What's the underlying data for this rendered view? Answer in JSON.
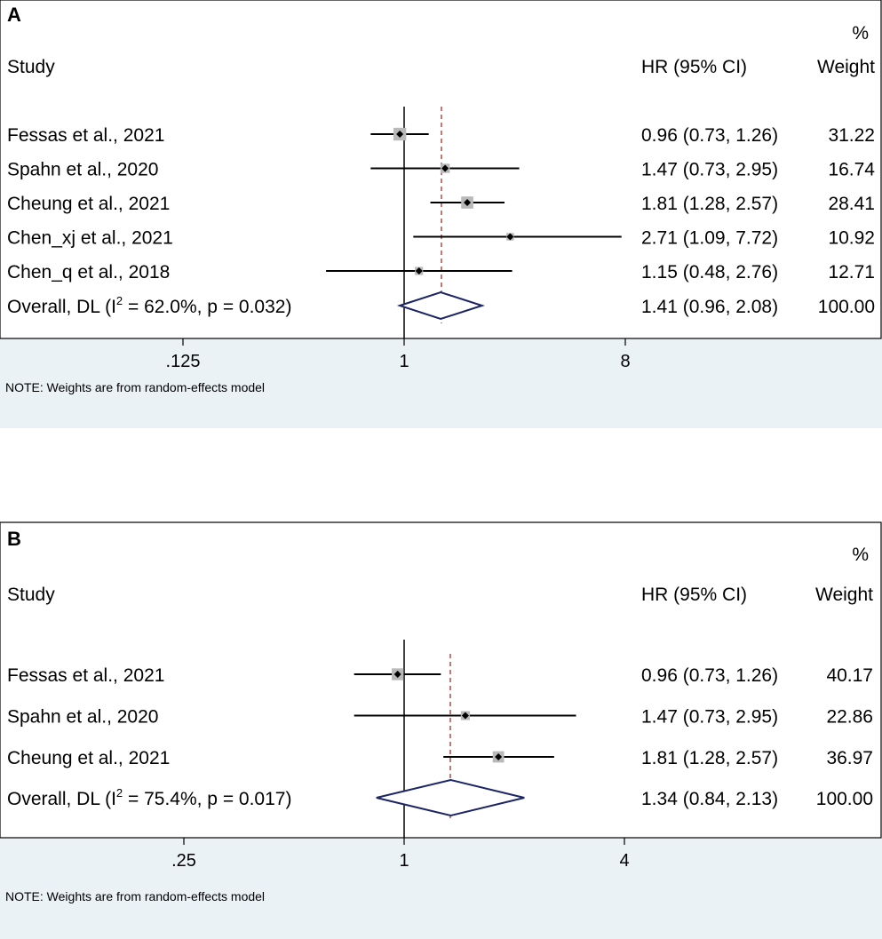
{
  "chart_data": [
    {
      "type": "forest",
      "panel_label": "A",
      "header": {
        "study": "Study",
        "hr": "HR (95% CI)",
        "weight_pct": "%",
        "weight": "Weight"
      },
      "x_scale": "log",
      "xlim": [
        0.0625,
        16
      ],
      "xticks": [
        0.125,
        1,
        8
      ],
      "xtick_labels": [
        ".125",
        "1",
        "8"
      ],
      "reference_line": 1,
      "pooled_estimate": 1.41,
      "studies": [
        {
          "label": "Fessas et al., 2021",
          "hr": 0.96,
          "lo": 0.73,
          "hi": 1.26,
          "hr_text": "0.96 (0.73, 1.26)",
          "weight": 31.22,
          "weight_text": "31.22"
        },
        {
          "label": "Spahn et al., 2020",
          "hr": 1.47,
          "lo": 0.73,
          "hi": 2.95,
          "hr_text": "1.47 (0.73, 2.95)",
          "weight": 16.74,
          "weight_text": "16.74"
        },
        {
          "label": "Cheung et al., 2021",
          "hr": 1.81,
          "lo": 1.28,
          "hi": 2.57,
          "hr_text": "1.81 (1.28, 2.57)",
          "weight": 28.41,
          "weight_text": "28.41"
        },
        {
          "label": "Chen_xj et al., 2021",
          "hr": 2.71,
          "lo": 1.09,
          "hi": 7.72,
          "hr_text": "2.71 (1.09, 7.72)",
          "weight": 10.92,
          "weight_text": "10.92"
        },
        {
          "label": "Chen_q et al., 2018",
          "hr": 1.15,
          "lo": 0.48,
          "hi": 2.76,
          "hr_text": "1.15 (0.48, 2.76)",
          "weight": 12.71,
          "weight_text": "12.71"
        }
      ],
      "overall": {
        "label_pre": "Overall, DL (I",
        "label_sup": "2",
        "label_post": " = 62.0%, p = 0.032)",
        "hr": 1.41,
        "lo": 0.96,
        "hi": 2.08,
        "hr_text": "1.41 (0.96, 2.08)",
        "weight_text": "100.00"
      },
      "note": "NOTE: Weights are from random-effects model"
    },
    {
      "type": "forest",
      "panel_label": "B",
      "header": {
        "study": "Study",
        "hr": "HR (95% CI)",
        "weight_pct": "%",
        "weight": "Weight"
      },
      "x_scale": "log",
      "xlim": [
        0.125,
        8
      ],
      "xticks": [
        0.25,
        1,
        4
      ],
      "xtick_labels": [
        ".25",
        "1",
        "4"
      ],
      "reference_line": 1,
      "pooled_estimate": 1.34,
      "studies": [
        {
          "label": "Fessas et al., 2021",
          "hr": 0.96,
          "lo": 0.73,
          "hi": 1.26,
          "hr_text": "0.96 (0.73, 1.26)",
          "weight": 40.17,
          "weight_text": "40.17"
        },
        {
          "label": "Spahn et al., 2020",
          "hr": 1.47,
          "lo": 0.73,
          "hi": 2.95,
          "hr_text": "1.47 (0.73, 2.95)",
          "weight": 22.86,
          "weight_text": "22.86"
        },
        {
          "label": "Cheung et al., 2021",
          "hr": 1.81,
          "lo": 1.28,
          "hi": 2.57,
          "hr_text": "1.81 (1.28, 2.57)",
          "weight": 36.97,
          "weight_text": "36.97"
        }
      ],
      "overall": {
        "label_pre": "Overall, DL (I",
        "label_sup": "2",
        "label_post": " = 75.4%, p = 0.017)",
        "hr": 1.34,
        "lo": 0.84,
        "hi": 2.13,
        "hr_text": "1.34 (0.84, 2.13)",
        "weight_text": "100.00"
      },
      "note": "NOTE: Weights are from random-effects model"
    }
  ]
}
